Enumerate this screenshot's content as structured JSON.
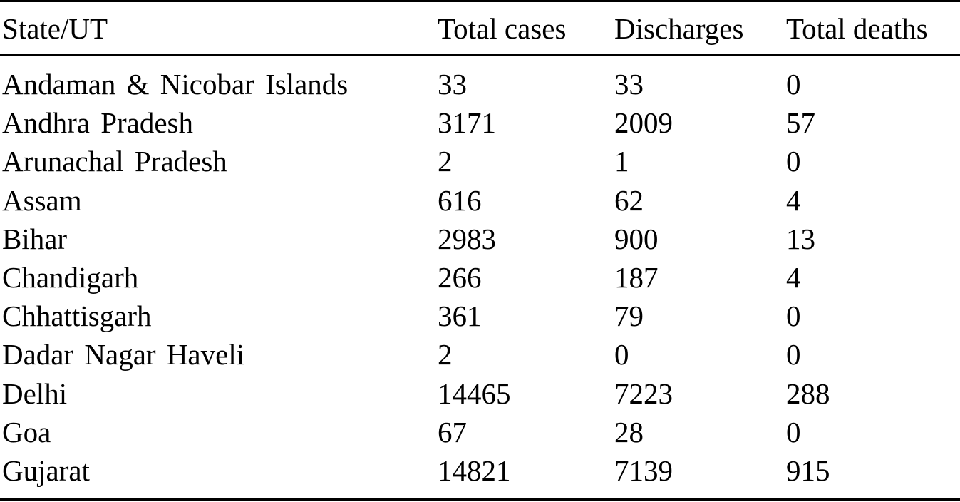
{
  "table": {
    "header": [
      "State/UT",
      "Total cases",
      "Discharges",
      "Total deaths"
    ],
    "rows": [
      [
        "Andaman & Nicobar Islands",
        33,
        33,
        0
      ],
      [
        "Andhra Pradesh",
        3171,
        2009,
        57
      ],
      [
        "Arunachal Pradesh",
        2,
        1,
        0
      ],
      [
        "Assam",
        616,
        62,
        4
      ],
      [
        "Bihar",
        2983,
        900,
        13
      ],
      [
        "Chandigarh",
        266,
        187,
        4
      ],
      [
        "Chhattisgarh",
        361,
        79,
        0
      ],
      [
        "Dadar Nagar Haveli",
        2,
        0,
        0
      ],
      [
        "Delhi",
        14465,
        7223,
        288
      ],
      [
        "Goa",
        67,
        28,
        0
      ],
      [
        "Gujarat",
        14821,
        7139,
        915
      ]
    ]
  }
}
